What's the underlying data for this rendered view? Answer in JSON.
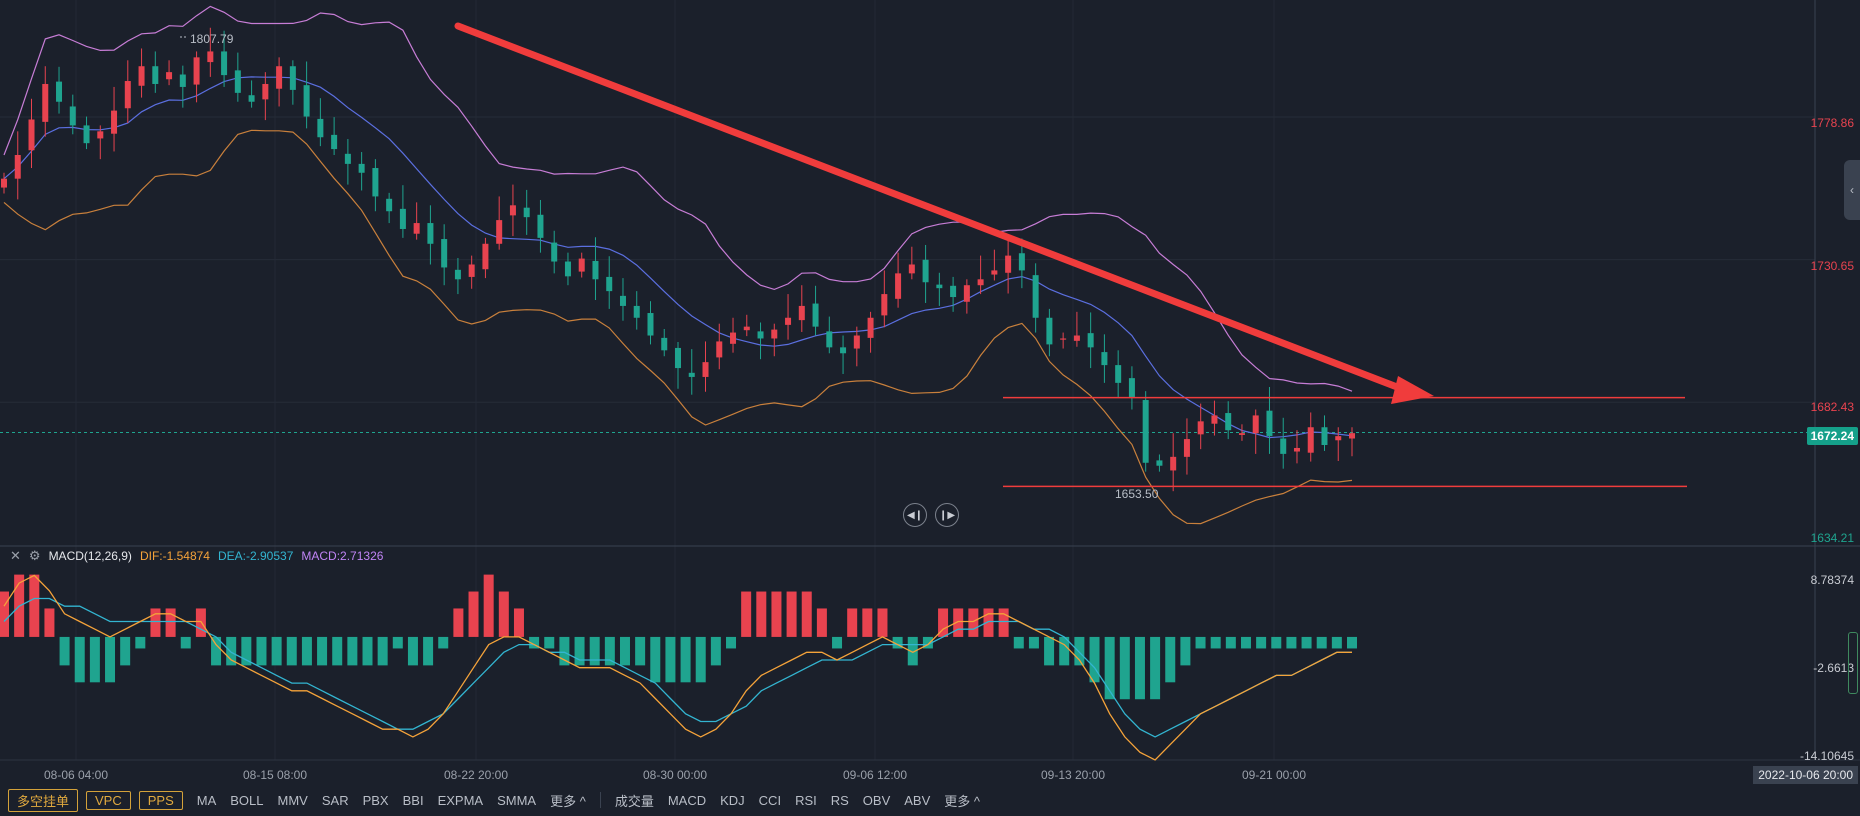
{
  "price_axis": {
    "labels": [
      "1778.86",
      "1730.65",
      "1682.43",
      "1634.21"
    ],
    "current_price": "1672.24"
  },
  "macd_axis": {
    "labels": [
      "8.78374",
      "-2.6613",
      "-14.10645"
    ]
  },
  "annotations": {
    "peak_high": "1807.79",
    "low": "1653.50"
  },
  "macd_header": {
    "title": "MACD(12,26,9)",
    "dif": "DIF:-1.54874",
    "dea": "DEA:-2.90537",
    "macd": "MACD:2.71326"
  },
  "x_axis": {
    "labels": [
      "08-06 04:00",
      "08-15 08:00",
      "08-22 20:00",
      "08-30 00:00",
      "09-06 12:00",
      "09-13 20:00",
      "09-21 00:00"
    ],
    "current_time": "2022-10-06 20:00"
  },
  "toolbar": {
    "buttons": [
      "多空挂单",
      "VPC",
      "PPS"
    ],
    "main_indicators": [
      "MA",
      "BOLL",
      "MMV",
      "SAR",
      "PBX",
      "BBI",
      "EXPMA",
      "SMMA",
      "更多 ^"
    ],
    "sub_indicators": [
      "成交量",
      "MACD",
      "KDJ",
      "CCI",
      "RSI",
      "RS",
      "OBV",
      "ABV",
      "更多 ^"
    ]
  },
  "colors": {
    "background": "#1b202b",
    "up": "#e8434f",
    "down": "#1fa48f",
    "boll_upper": "#c77dd6",
    "boll_mid": "#5b6fe0",
    "boll_lower": "#c9803c",
    "dif": "#f5a33a",
    "dea": "#33b5d1"
  },
  "chart_data": {
    "type": "candlestick",
    "ylim": [
      1634.21,
      1815
    ],
    "close_series": [
      1758,
      1766,
      1778,
      1790,
      1784,
      1776,
      1770,
      1774,
      1781,
      1791,
      1796,
      1790,
      1794,
      1789,
      1799,
      1801,
      1793,
      1787,
      1784,
      1790,
      1796,
      1788,
      1779,
      1772,
      1768,
      1763,
      1760,
      1752,
      1747,
      1741,
      1743,
      1736,
      1728,
      1724,
      1729,
      1736,
      1744,
      1749,
      1745,
      1738,
      1730,
      1725,
      1731,
      1724,
      1720,
      1715,
      1711,
      1705,
      1700,
      1694,
      1691,
      1696,
      1703,
      1706,
      1708,
      1704,
      1707,
      1711,
      1715,
      1708,
      1701,
      1699,
      1705,
      1711,
      1719,
      1726,
      1729,
      1723,
      1721,
      1718,
      1722,
      1724,
      1727,
      1732,
      1727,
      1711,
      1702,
      1704,
      1705,
      1701,
      1695,
      1689,
      1684,
      1662,
      1661,
      1664,
      1670,
      1676,
      1678,
      1673,
      1672,
      1678,
      1671,
      1665,
      1667,
      1674,
      1668,
      1671,
      1672
    ],
    "macd": {
      "dif": [
        4,
        7,
        8,
        6,
        3,
        2,
        1,
        0,
        1,
        2,
        3,
        3,
        2,
        2,
        -1,
        -3,
        -4,
        -5,
        -6,
        -7,
        -7,
        -8,
        -9,
        -10,
        -11,
        -12,
        -12,
        -13,
        -12,
        -10,
        -7,
        -4,
        -1,
        0,
        0,
        -1,
        -2,
        -3,
        -4,
        -4,
        -4,
        -5,
        -6,
        -8,
        -10,
        -12,
        -13,
        -12,
        -10,
        -7,
        -5,
        -4,
        -3,
        -2,
        -2,
        -3,
        -2,
        -1,
        0,
        -1,
        -2,
        -1,
        1,
        2,
        2,
        3,
        3,
        2,
        1,
        0,
        -1,
        -3,
        -6,
        -10,
        -13,
        -15,
        -16,
        -14,
        -12,
        -10,
        -9,
        -8,
        -7,
        -6,
        -5,
        -5,
        -4,
        -3,
        -2,
        -2
      ],
      "dea": [
        2,
        4,
        5,
        5,
        4,
        4,
        3,
        2,
        2,
        2,
        2,
        2,
        2,
        1,
        0,
        -2,
        -3,
        -4,
        -5,
        -6,
        -6,
        -7,
        -8,
        -9,
        -10,
        -11,
        -12,
        -12,
        -11,
        -10,
        -8,
        -6,
        -4,
        -2,
        -1,
        -1,
        -2,
        -2,
        -3,
        -3,
        -3,
        -4,
        -5,
        -6,
        -8,
        -10,
        -11,
        -11,
        -10,
        -9,
        -7,
        -6,
        -5,
        -4,
        -3,
        -3,
        -3,
        -2,
        -1,
        -1,
        -1,
        -1,
        0,
        1,
        1,
        2,
        2,
        2,
        1,
        1,
        0,
        -2,
        -4,
        -7,
        -10,
        -12,
        -13,
        -12,
        -11,
        -10,
        -9,
        -8,
        -7,
        -6,
        -5,
        -5,
        -4,
        -3,
        -2,
        -2
      ]
    }
  }
}
